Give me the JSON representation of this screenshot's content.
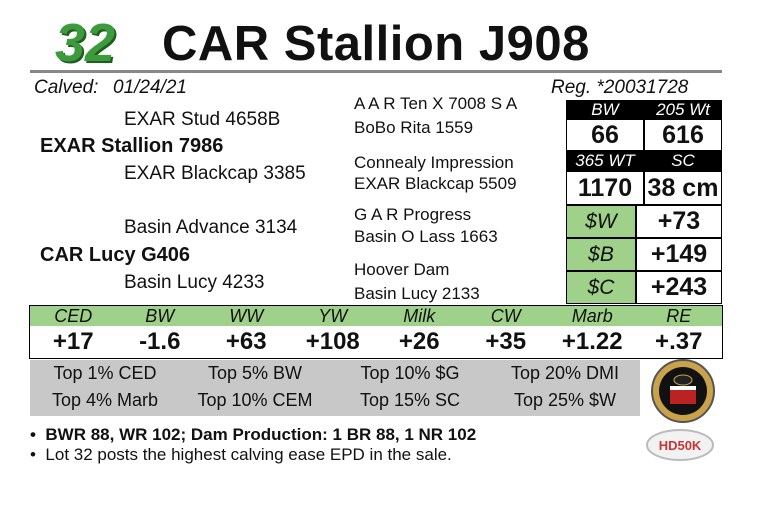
{
  "header": {
    "lot": 32,
    "name": "CAR Stallion J908",
    "calved_label": "Calved:",
    "calved": "01/24/21",
    "registration": "Reg. *20031728"
  },
  "pedigree": {
    "sire_sire": "EXAR Stud 4658B",
    "sire": "EXAR Stallion 7986",
    "sire_dam": "EXAR Blackcap 3385",
    "sire_sire_sire": "A A R Ten X 7008 S A",
    "sire_sire_dam": "BoBo Rita 1559",
    "sire_dam_sire": "Connealy Impression",
    "sire_dam_dam": "EXAR Blackcap 5509",
    "dam_sire": "Basin Advance 3134",
    "dam": "CAR Lucy G406",
    "dam_dam": "Basin Lucy 4233",
    "dam_sire_sire": "G A R Progress",
    "dam_sire_dam": "Basin O Lass 1663",
    "dam_dam_sire": "Hoover Dam",
    "dam_dam_dam": "Basin Lucy 2133"
  },
  "performance": [
    {
      "label": "BW",
      "value": 66
    },
    {
      "label": "205 Wt",
      "value": 616
    },
    {
      "label": "365 WT",
      "value": 1170
    },
    {
      "label": "SC",
      "value": "38 cm"
    }
  ],
  "indexes": [
    {
      "label": "$W",
      "value": "+73"
    },
    {
      "label": "$B",
      "value": "+149"
    },
    {
      "label": "$C",
      "value": "+243"
    }
  ],
  "epd": {
    "headers": [
      "CED",
      "BW",
      "WW",
      "YW",
      "Milk",
      "CW",
      "Marb",
      "RE"
    ],
    "values": [
      "+17",
      "-1.6",
      "+63",
      "+108",
      "+26",
      "+35",
      "+1.22",
      "+.37"
    ]
  },
  "rankings": [
    "Top 1% CED",
    "Top 5% BW",
    "Top 10% $G",
    "Top 20% DMI",
    "Top 4% Marb",
    "Top 10% CEM",
    "Top 15% SC",
    "Top 25% $W"
  ],
  "badges": {
    "genomic": "HD50K"
  },
  "notes": [
    "BWR 88, WR 102;  Dam Production: 1 BR 88, 1 NR 102",
    "Lot 32 posts the highest calving ease EPD in the sale."
  ]
}
